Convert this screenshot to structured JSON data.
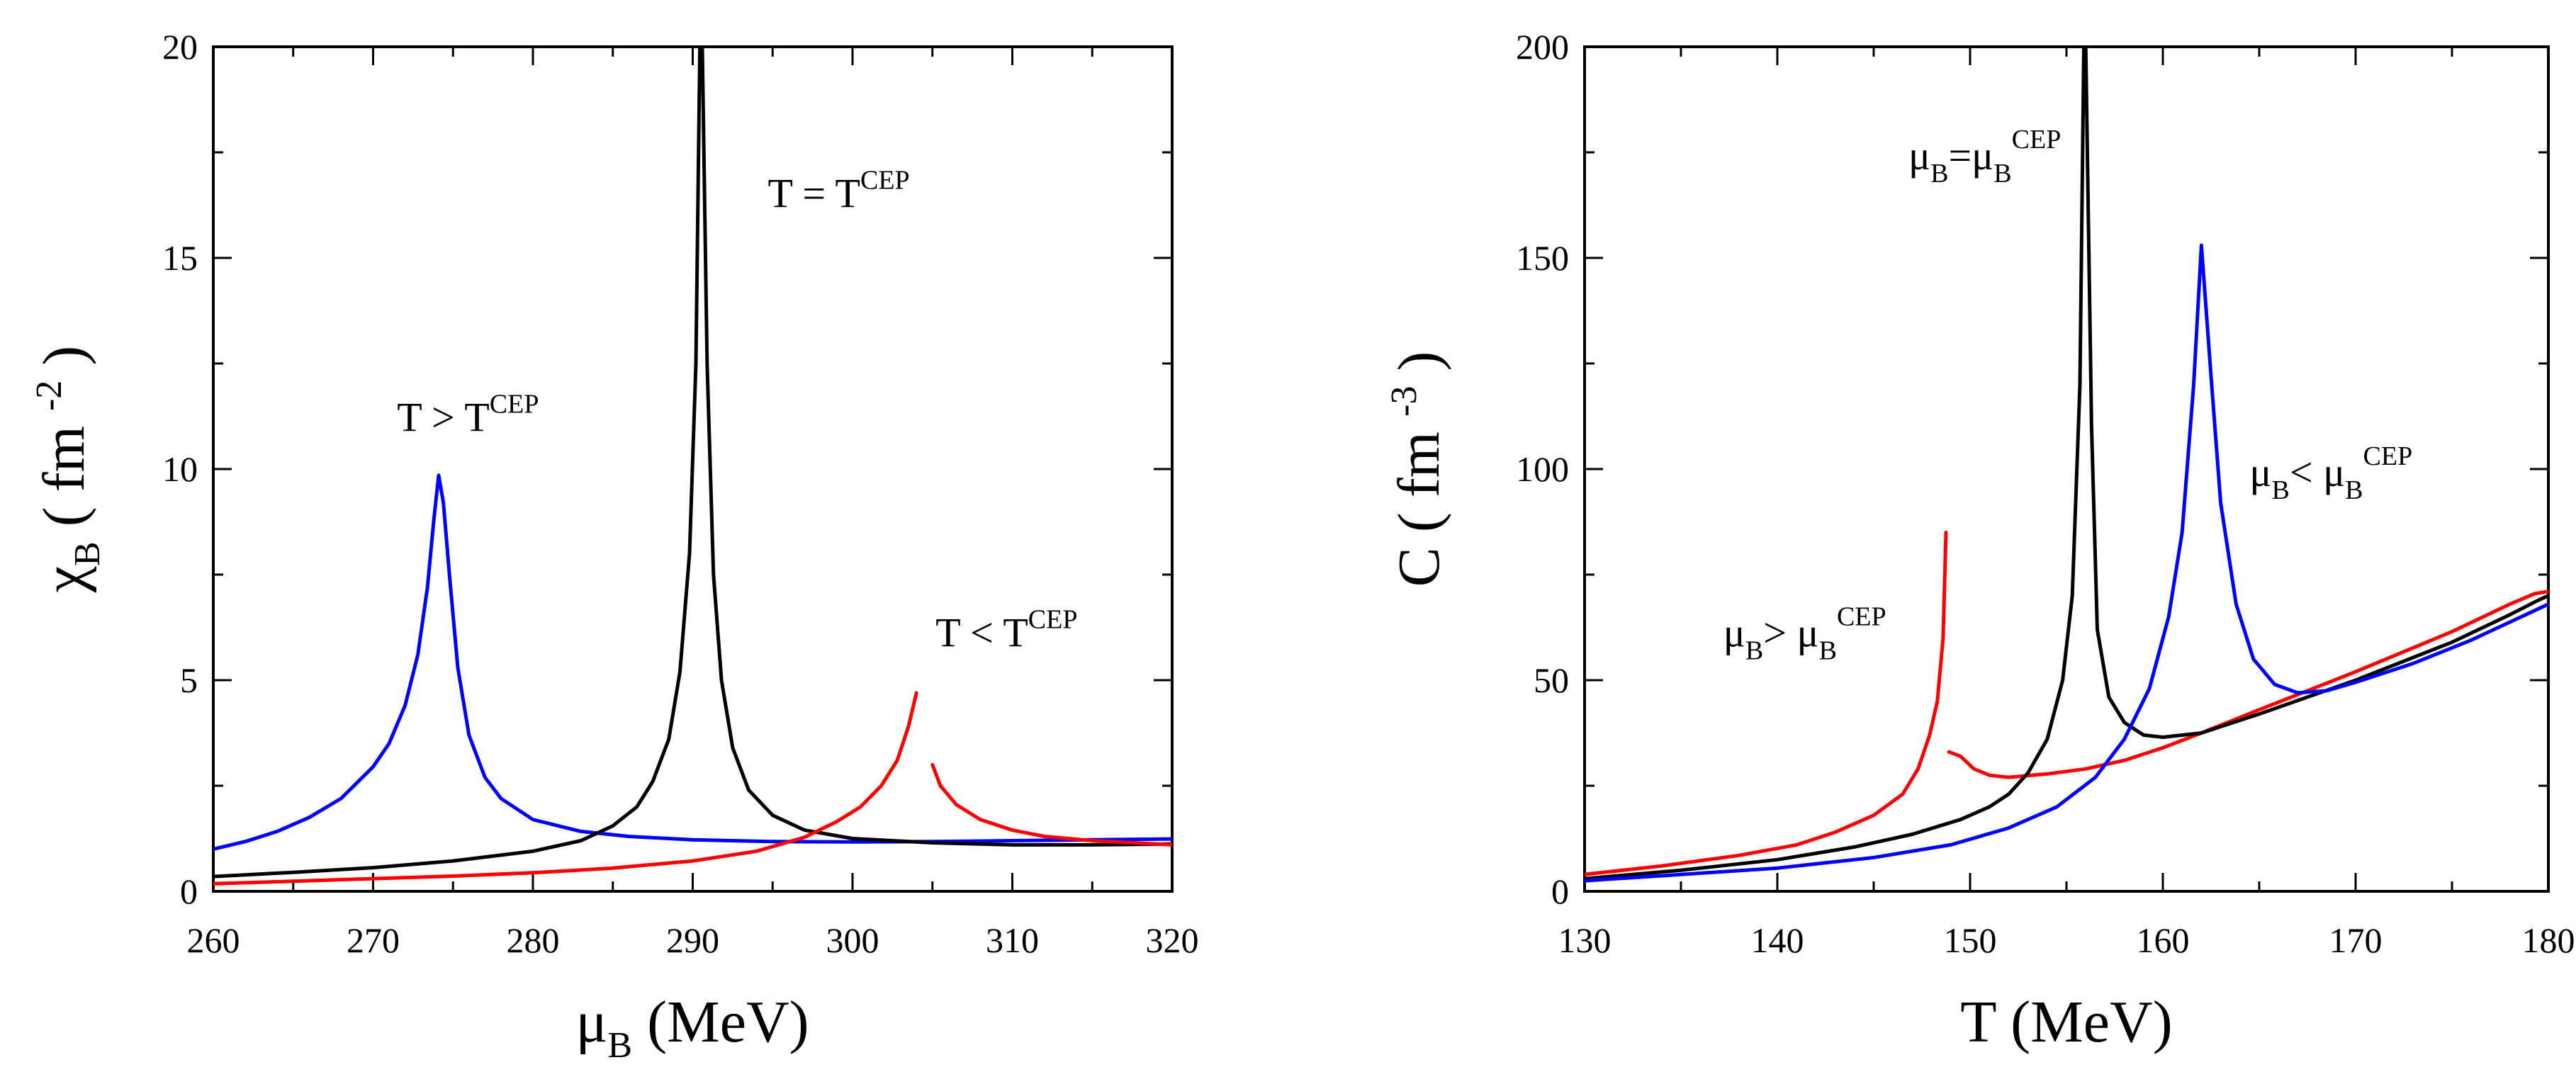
{
  "chart_data": [
    {
      "type": "line",
      "panel": "left",
      "xlabel": {
        "main": "μ",
        "sub": "B",
        "rest": " (MeV)"
      },
      "ylabel": {
        "main": "χ",
        "sub": "B",
        "open": " ( fm ",
        "sup": "-2",
        "close": " )"
      },
      "xlim": [
        260,
        320
      ],
      "ylim": [
        0,
        20
      ],
      "x_ticks": [
        260,
        270,
        280,
        290,
        300,
        310,
        320
      ],
      "y_ticks": [
        0,
        5,
        10,
        15,
        20
      ],
      "series": [
        {
          "name": "T > T^CEP",
          "color": "#0000ff",
          "segments": [
            [
              [
                260,
                1.0
              ],
              [
                262,
                1.18
              ],
              [
                264,
                1.42
              ],
              [
                266,
                1.75
              ],
              [
                268,
                2.2
              ],
              [
                270,
                2.95
              ],
              [
                271,
                3.5
              ],
              [
                272,
                4.4
              ],
              [
                272.8,
                5.6
              ],
              [
                273.4,
                7.2
              ],
              [
                273.8,
                8.8
              ],
              [
                274.1,
                9.85
              ],
              [
                274.4,
                9.2
              ],
              [
                274.8,
                7.4
              ],
              [
                275.3,
                5.3
              ],
              [
                276,
                3.7
              ],
              [
                277,
                2.7
              ],
              [
                278,
                2.2
              ],
              [
                280,
                1.7
              ],
              [
                283,
                1.42
              ],
              [
                286,
                1.3
              ],
              [
                290,
                1.22
              ],
              [
                295,
                1.18
              ],
              [
                300,
                1.17
              ],
              [
                305,
                1.18
              ],
              [
                310,
                1.2
              ],
              [
                315,
                1.22
              ],
              [
                320,
                1.24
              ]
            ]
          ]
        },
        {
          "name": "T = T^CEP",
          "color": "#000000",
          "segments": [
            [
              [
                260,
                0.35
              ],
              [
                265,
                0.45
              ],
              [
                270,
                0.56
              ],
              [
                275,
                0.72
              ],
              [
                280,
                0.95
              ],
              [
                283,
                1.2
              ],
              [
                285,
                1.55
              ],
              [
                286.5,
                2.0
              ],
              [
                287.5,
                2.6
              ],
              [
                288.5,
                3.6
              ],
              [
                289.2,
                5.2
              ],
              [
                289.8,
                8.0
              ],
              [
                290.2,
                12.5
              ],
              [
                290.45,
                20.0
              ]
            ],
            [
              [
                290.6,
                20.0
              ],
              [
                290.9,
                12.5
              ],
              [
                291.3,
                7.5
              ],
              [
                291.8,
                5.0
              ],
              [
                292.5,
                3.4
              ],
              [
                293.5,
                2.4
              ],
              [
                295,
                1.8
              ],
              [
                297,
                1.45
              ],
              [
                300,
                1.25
              ],
              [
                305,
                1.15
              ],
              [
                310,
                1.1
              ],
              [
                315,
                1.1
              ],
              [
                320,
                1.12
              ]
            ]
          ]
        },
        {
          "name": "T < T^CEP",
          "color": "#ff0000",
          "segments": [
            [
              [
                260,
                0.18
              ],
              [
                265,
                0.24
              ],
              [
                270,
                0.3
              ],
              [
                275,
                0.36
              ],
              [
                280,
                0.44
              ],
              [
                285,
                0.55
              ],
              [
                290,
                0.72
              ],
              [
                294,
                0.95
              ],
              [
                297,
                1.28
              ],
              [
                299,
                1.65
              ],
              [
                300.5,
                2.0
              ],
              [
                301.8,
                2.5
              ],
              [
                302.8,
                3.1
              ],
              [
                303.5,
                3.9
              ],
              [
                304,
                4.7
              ]
            ],
            [
              [
                305,
                3.0
              ],
              [
                305.5,
                2.5
              ],
              [
                306.5,
                2.05
              ],
              [
                308,
                1.7
              ],
              [
                310,
                1.45
              ],
              [
                312,
                1.3
              ],
              [
                315,
                1.2
              ],
              [
                320,
                1.1
              ]
            ]
          ]
        }
      ],
      "annotations": [
        {
          "id": "T-above",
          "base": "T > T",
          "sup": "CEP",
          "x": 271.5,
          "y": 10.9
        },
        {
          "id": "T-equal",
          "base": "T = T",
          "sup": "CEP",
          "x": 294.7,
          "y": 16.2
        },
        {
          "id": "T-below",
          "base": "T < T",
          "sup": "CEP",
          "x": 305.2,
          "y": 5.8
        }
      ]
    },
    {
      "type": "line",
      "panel": "right",
      "xlabel": {
        "main": "T",
        "sub": "",
        "rest": " (MeV)"
      },
      "ylabel": {
        "main": "C",
        "sub": "",
        "open": " ( fm ",
        "sup": "-3",
        "close": " )"
      },
      "xlim": [
        130,
        180
      ],
      "ylim": [
        0,
        200
      ],
      "x_ticks": [
        130,
        140,
        150,
        160,
        170,
        180
      ],
      "y_ticks": [
        0,
        50,
        100,
        150,
        200
      ],
      "series": [
        {
          "name": "μB > μB^CEP",
          "color": "#ff0000",
          "segments": [
            [
              [
                130,
                4
              ],
              [
                134,
                6
              ],
              [
                138,
                8.5
              ],
              [
                141,
                11
              ],
              [
                143,
                14
              ],
              [
                145,
                18
              ],
              [
                146.5,
                23
              ],
              [
                147.3,
                29
              ],
              [
                147.9,
                37
              ],
              [
                148.3,
                45
              ],
              [
                148.6,
                60
              ],
              [
                148.75,
                85
              ]
            ],
            [
              [
                148.9,
                33
              ],
              [
                149.5,
                32
              ],
              [
                150.2,
                29
              ],
              [
                151,
                27.5
              ],
              [
                152,
                27
              ],
              [
                154,
                27.8
              ],
              [
                156,
                29
              ],
              [
                158,
                31
              ],
              [
                160,
                34
              ],
              [
                162,
                37.5
              ],
              [
                165,
                43
              ],
              [
                170,
                52
              ],
              [
                175,
                61.5
              ],
              [
                178,
                68
              ],
              [
                179.3,
                70.5
              ],
              [
                180,
                71
              ]
            ]
          ]
        },
        {
          "name": "μB = μB^CEP",
          "color": "#000000",
          "segments": [
            [
              [
                130,
                3
              ],
              [
                135,
                5
              ],
              [
                140,
                7.5
              ],
              [
                144,
                10.5
              ],
              [
                147,
                13.5
              ],
              [
                149.5,
                17
              ],
              [
                151,
                20
              ],
              [
                152,
                23
              ],
              [
                153,
                28
              ],
              [
                154,
                36
              ],
              [
                154.8,
                50
              ],
              [
                155.3,
                70
              ],
              [
                155.7,
                120
              ],
              [
                155.9,
                200
              ]
            ],
            [
              [
                156.0,
                200
              ],
              [
                156.3,
                110
              ],
              [
                156.6,
                62
              ],
              [
                157.2,
                46
              ],
              [
                158,
                40
              ],
              [
                159,
                37
              ],
              [
                160,
                36.5
              ],
              [
                162,
                37.5
              ],
              [
                165,
                42
              ],
              [
                170,
                50
              ],
              [
                175,
                59
              ],
              [
                178,
                65.5
              ],
              [
                179.5,
                69
              ],
              [
                180,
                70
              ]
            ]
          ]
        },
        {
          "name": "μB < μB^CEP",
          "color": "#0000ff",
          "segments": [
            [
              [
                130,
                2.5
              ],
              [
                135,
                4
              ],
              [
                140,
                5.5
              ],
              [
                145,
                8
              ],
              [
                149,
                11
              ],
              [
                152,
                15
              ],
              [
                154.5,
                20
              ],
              [
                156.5,
                27
              ],
              [
                158,
                36
              ],
              [
                159.3,
                48
              ],
              [
                160.3,
                65
              ],
              [
                161,
                85
              ],
              [
                161.6,
                120
              ],
              [
                162,
                153
              ],
              [
                162.5,
                122
              ],
              [
                163,
                92
              ],
              [
                163.8,
                68
              ],
              [
                164.7,
                55
              ],
              [
                165.8,
                49
              ],
              [
                167,
                47
              ],
              [
                168.5,
                47.5
              ],
              [
                170,
                49.5
              ],
              [
                173,
                54
              ],
              [
                176,
                59.5
              ],
              [
                180,
                68
              ]
            ]
          ]
        }
      ],
      "annotations": [
        {
          "id": "mu-equal",
          "base": "μ",
          "sub": "B",
          "mid": "=μ",
          "sub2": "B",
          "sup": "CEP",
          "x": 146.8,
          "y": 171
        },
        {
          "id": "mu-less",
          "base": "μ",
          "sub": "B",
          "mid": "< μ",
          "sub2": "B",
          "sup": "CEP",
          "x": 164.5,
          "y": 96
        },
        {
          "id": "mu-greater",
          "base": "μ",
          "sub": "B",
          "mid": "> μ",
          "sub2": "B",
          "sup": "CEP",
          "x": 137.2,
          "y": 58
        }
      ]
    }
  ]
}
